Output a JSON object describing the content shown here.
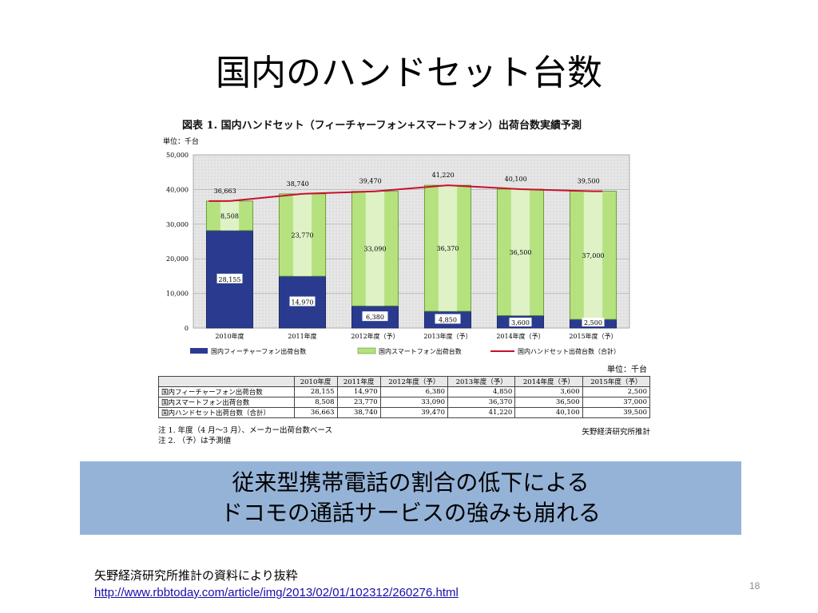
{
  "slide": {
    "title": "国内のハンドセット台数",
    "banner_line1": "従来型携帯電話の割合の低下による",
    "banner_line2": "ドコモの通話サービスの強みも崩れる",
    "source_label": "矢野経済研究所推計の資料により抜粋",
    "source_url": "http://www.rbbtoday.com/article/img/2013/02/01/102312/260276.html",
    "page_number": "18"
  },
  "figure": {
    "caption": "図表 1. 国内ハンドセット（フィーチャーフォン+スマートフォン）出荷台数実績予測",
    "unit_top": "単位：千台",
    "table_unit": "単位：千台",
    "notes": [
      "注 1. 年度（4 月～3 月）、メーカー出荷台数ベース",
      "注 2. （予）は予測値"
    ],
    "source_note": "矢野経済研究所推計"
  },
  "chart_data": {
    "type": "bar",
    "stacked": true,
    "categories": [
      "2010年度",
      "2011年度",
      "2012年度（予）",
      "2013年度（予）",
      "2014年度（予）",
      "2015年度（予）"
    ],
    "series": [
      {
        "name": "国内フィーチャーフォン出荷台数",
        "values": [
          28155,
          14970,
          6380,
          4850,
          3600,
          2500
        ],
        "labels": [
          "28,155",
          "14,970",
          "6,380",
          "4,850",
          "3,600",
          "2,500"
        ],
        "color": "#2a3b8f"
      },
      {
        "name": "国内スマートフォン出荷台数",
        "values": [
          8508,
          23770,
          33090,
          36370,
          36500,
          37000
        ],
        "labels": [
          "8,508",
          "23,770",
          "33,090",
          "36,370",
          "36,500",
          "37,000"
        ],
        "color": "#b5e27f"
      },
      {
        "name": "国内ハンドセット出荷台数（合計）",
        "type": "line",
        "values": [
          36663,
          38740,
          39470,
          41220,
          40100,
          39500
        ],
        "labels": [
          "36,663",
          "38,740",
          "39,470",
          "41,220",
          "40,100",
          "39,500"
        ],
        "color": "#c8102e"
      }
    ],
    "y_ticks": [
      "0",
      "10,000",
      "20,000",
      "30,000",
      "40,000",
      "50,000"
    ],
    "ylim": [
      0,
      50000
    ],
    "grid": true,
    "legend_position": "bottom"
  },
  "table": {
    "headers": [
      "",
      "2010年度",
      "2011年度",
      "2012年度（予）",
      "2013年度（予）",
      "2014年度（予）",
      "2015年度（予）"
    ],
    "rows": [
      [
        "国内フィーチャーフォン出荷台数",
        "28,155",
        "14,970",
        "6,380",
        "4,850",
        "3,600",
        "2,500"
      ],
      [
        "国内スマートフォン出荷台数",
        "8,508",
        "23,770",
        "33,090",
        "36,370",
        "36,500",
        "37,000"
      ],
      [
        "国内ハンドセット出荷台数（合計）",
        "36,663",
        "38,740",
        "39,470",
        "41,220",
        "40,100",
        "39,500"
      ]
    ]
  }
}
